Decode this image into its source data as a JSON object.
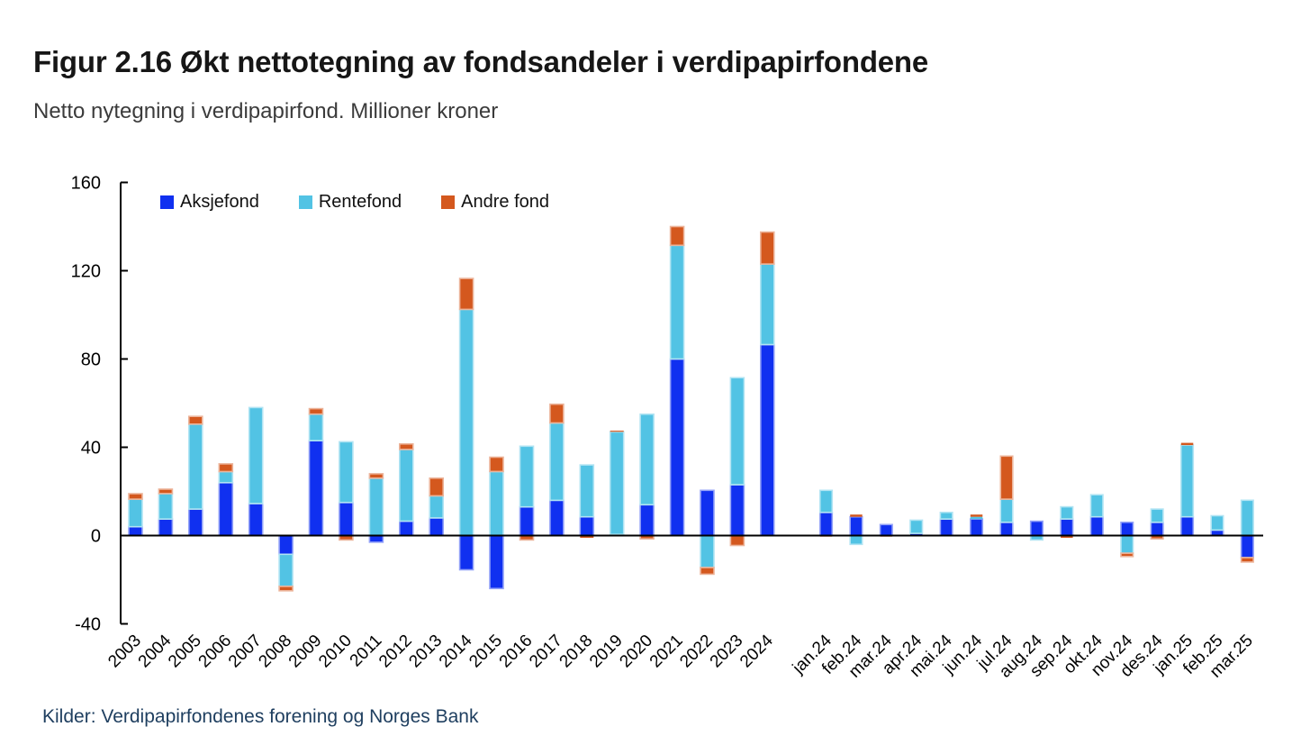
{
  "header": {
    "title": "Figur 2.16 Økt nettotegning av fondsandeler i verdipapirfondene",
    "subtitle": "Netto nytegning i verdipapirfond. Millioner kroner"
  },
  "footer": {
    "source": "Kilder: Verdipapirfondenes forening og Norges Bank"
  },
  "chart_data": {
    "type": "bar",
    "stacked": true,
    "title": "Figur 2.16 Økt nettotegning av fondsandeler i verdipapirfondene",
    "subtitle": "Netto nytegning i verdipapirfond. Millioner kroner",
    "unit": "Millioner kroner",
    "ylim": [
      -40,
      160
    ],
    "yticks": [
      160,
      120,
      80,
      40,
      0,
      -40
    ],
    "grid": false,
    "legend_position": "inside-top-left",
    "axis_color": "#000000",
    "series": [
      {
        "name": "Aksjefond",
        "color": "#1030f0"
      },
      {
        "name": "Rentefond",
        "color": "#52c3e4"
      },
      {
        "name": "Andre fond",
        "color": "#d4581e"
      }
    ],
    "annual": [
      {
        "label": "2003",
        "values": [
          4,
          12.5,
          2.5
        ]
      },
      {
        "label": "2004",
        "values": [
          7.5,
          11.5,
          2
        ]
      },
      {
        "label": "2005",
        "values": [
          12,
          38.5,
          3.5
        ]
      },
      {
        "label": "2006",
        "values": [
          24,
          5,
          3.5
        ]
      },
      {
        "label": "2007",
        "values": [
          14.5,
          43.5,
          0
        ]
      },
      {
        "label": "2008",
        "values": [
          -8.5,
          -14.5,
          -2
        ]
      },
      {
        "label": "2009",
        "values": [
          43,
          12,
          2.5
        ]
      },
      {
        "label": "2010",
        "values": [
          15,
          27.5,
          -2
        ]
      },
      {
        "label": "2011",
        "values": [
          -3,
          26,
          2
        ]
      },
      {
        "label": "2012",
        "values": [
          6.5,
          32.5,
          2.5
        ]
      },
      {
        "label": "2013",
        "values": [
          8,
          10,
          8
        ]
      },
      {
        "label": "2014",
        "values": [
          -15.5,
          102.5,
          14
        ]
      },
      {
        "label": "2015",
        "values": [
          -24,
          29,
          6.5
        ]
      },
      {
        "label": "2016",
        "values": [
          13,
          27.5,
          -2
        ]
      },
      {
        "label": "2017",
        "values": [
          16,
          35,
          8.5
        ]
      },
      {
        "label": "2018",
        "values": [
          8.5,
          23.5,
          -1
        ]
      },
      {
        "label": "2019",
        "values": [
          0.5,
          46.5,
          0.5
        ]
      },
      {
        "label": "2020",
        "values": [
          14,
          41,
          -1.5
        ]
      },
      {
        "label": "2021",
        "values": [
          80,
          51.5,
          8.5
        ]
      },
      {
        "label": "2022",
        "values": [
          20.5,
          -14.5,
          -3
        ]
      },
      {
        "label": "2023",
        "values": [
          23,
          48.5,
          -4.5
        ]
      },
      {
        "label": "2024",
        "values": [
          86.5,
          36.5,
          14.5
        ]
      }
    ],
    "monthly": [
      {
        "label": "jan.24",
        "values": [
          10.5,
          10,
          -0.5
        ]
      },
      {
        "label": "feb.24",
        "values": [
          8.5,
          -4,
          1
        ]
      },
      {
        "label": "mar.24",
        "values": [
          5,
          0,
          -0.5
        ]
      },
      {
        "label": "apr.24",
        "values": [
          1,
          6,
          0
        ]
      },
      {
        "label": "mai.24",
        "values": [
          7.5,
          3,
          0
        ]
      },
      {
        "label": "jun.24",
        "values": [
          7.5,
          1,
          1
        ]
      },
      {
        "label": "jul.24",
        "values": [
          6,
          10.5,
          19.5
        ]
      },
      {
        "label": "aug.24",
        "values": [
          6.5,
          -2,
          0
        ]
      },
      {
        "label": "sep.24",
        "values": [
          7.5,
          5.5,
          -1
        ]
      },
      {
        "label": "okt.24",
        "values": [
          8.5,
          10,
          0
        ]
      },
      {
        "label": "nov.24",
        "values": [
          6,
          -8,
          -1.5
        ]
      },
      {
        "label": "des.24",
        "values": [
          6,
          6,
          -1.5
        ]
      },
      {
        "label": "jan.25",
        "values": [
          8.5,
          32.5,
          1
        ]
      },
      {
        "label": "feb.25",
        "values": [
          2.5,
          6.5,
          0
        ]
      },
      {
        "label": "mar.25",
        "values": [
          -10,
          16,
          -2
        ]
      }
    ]
  }
}
